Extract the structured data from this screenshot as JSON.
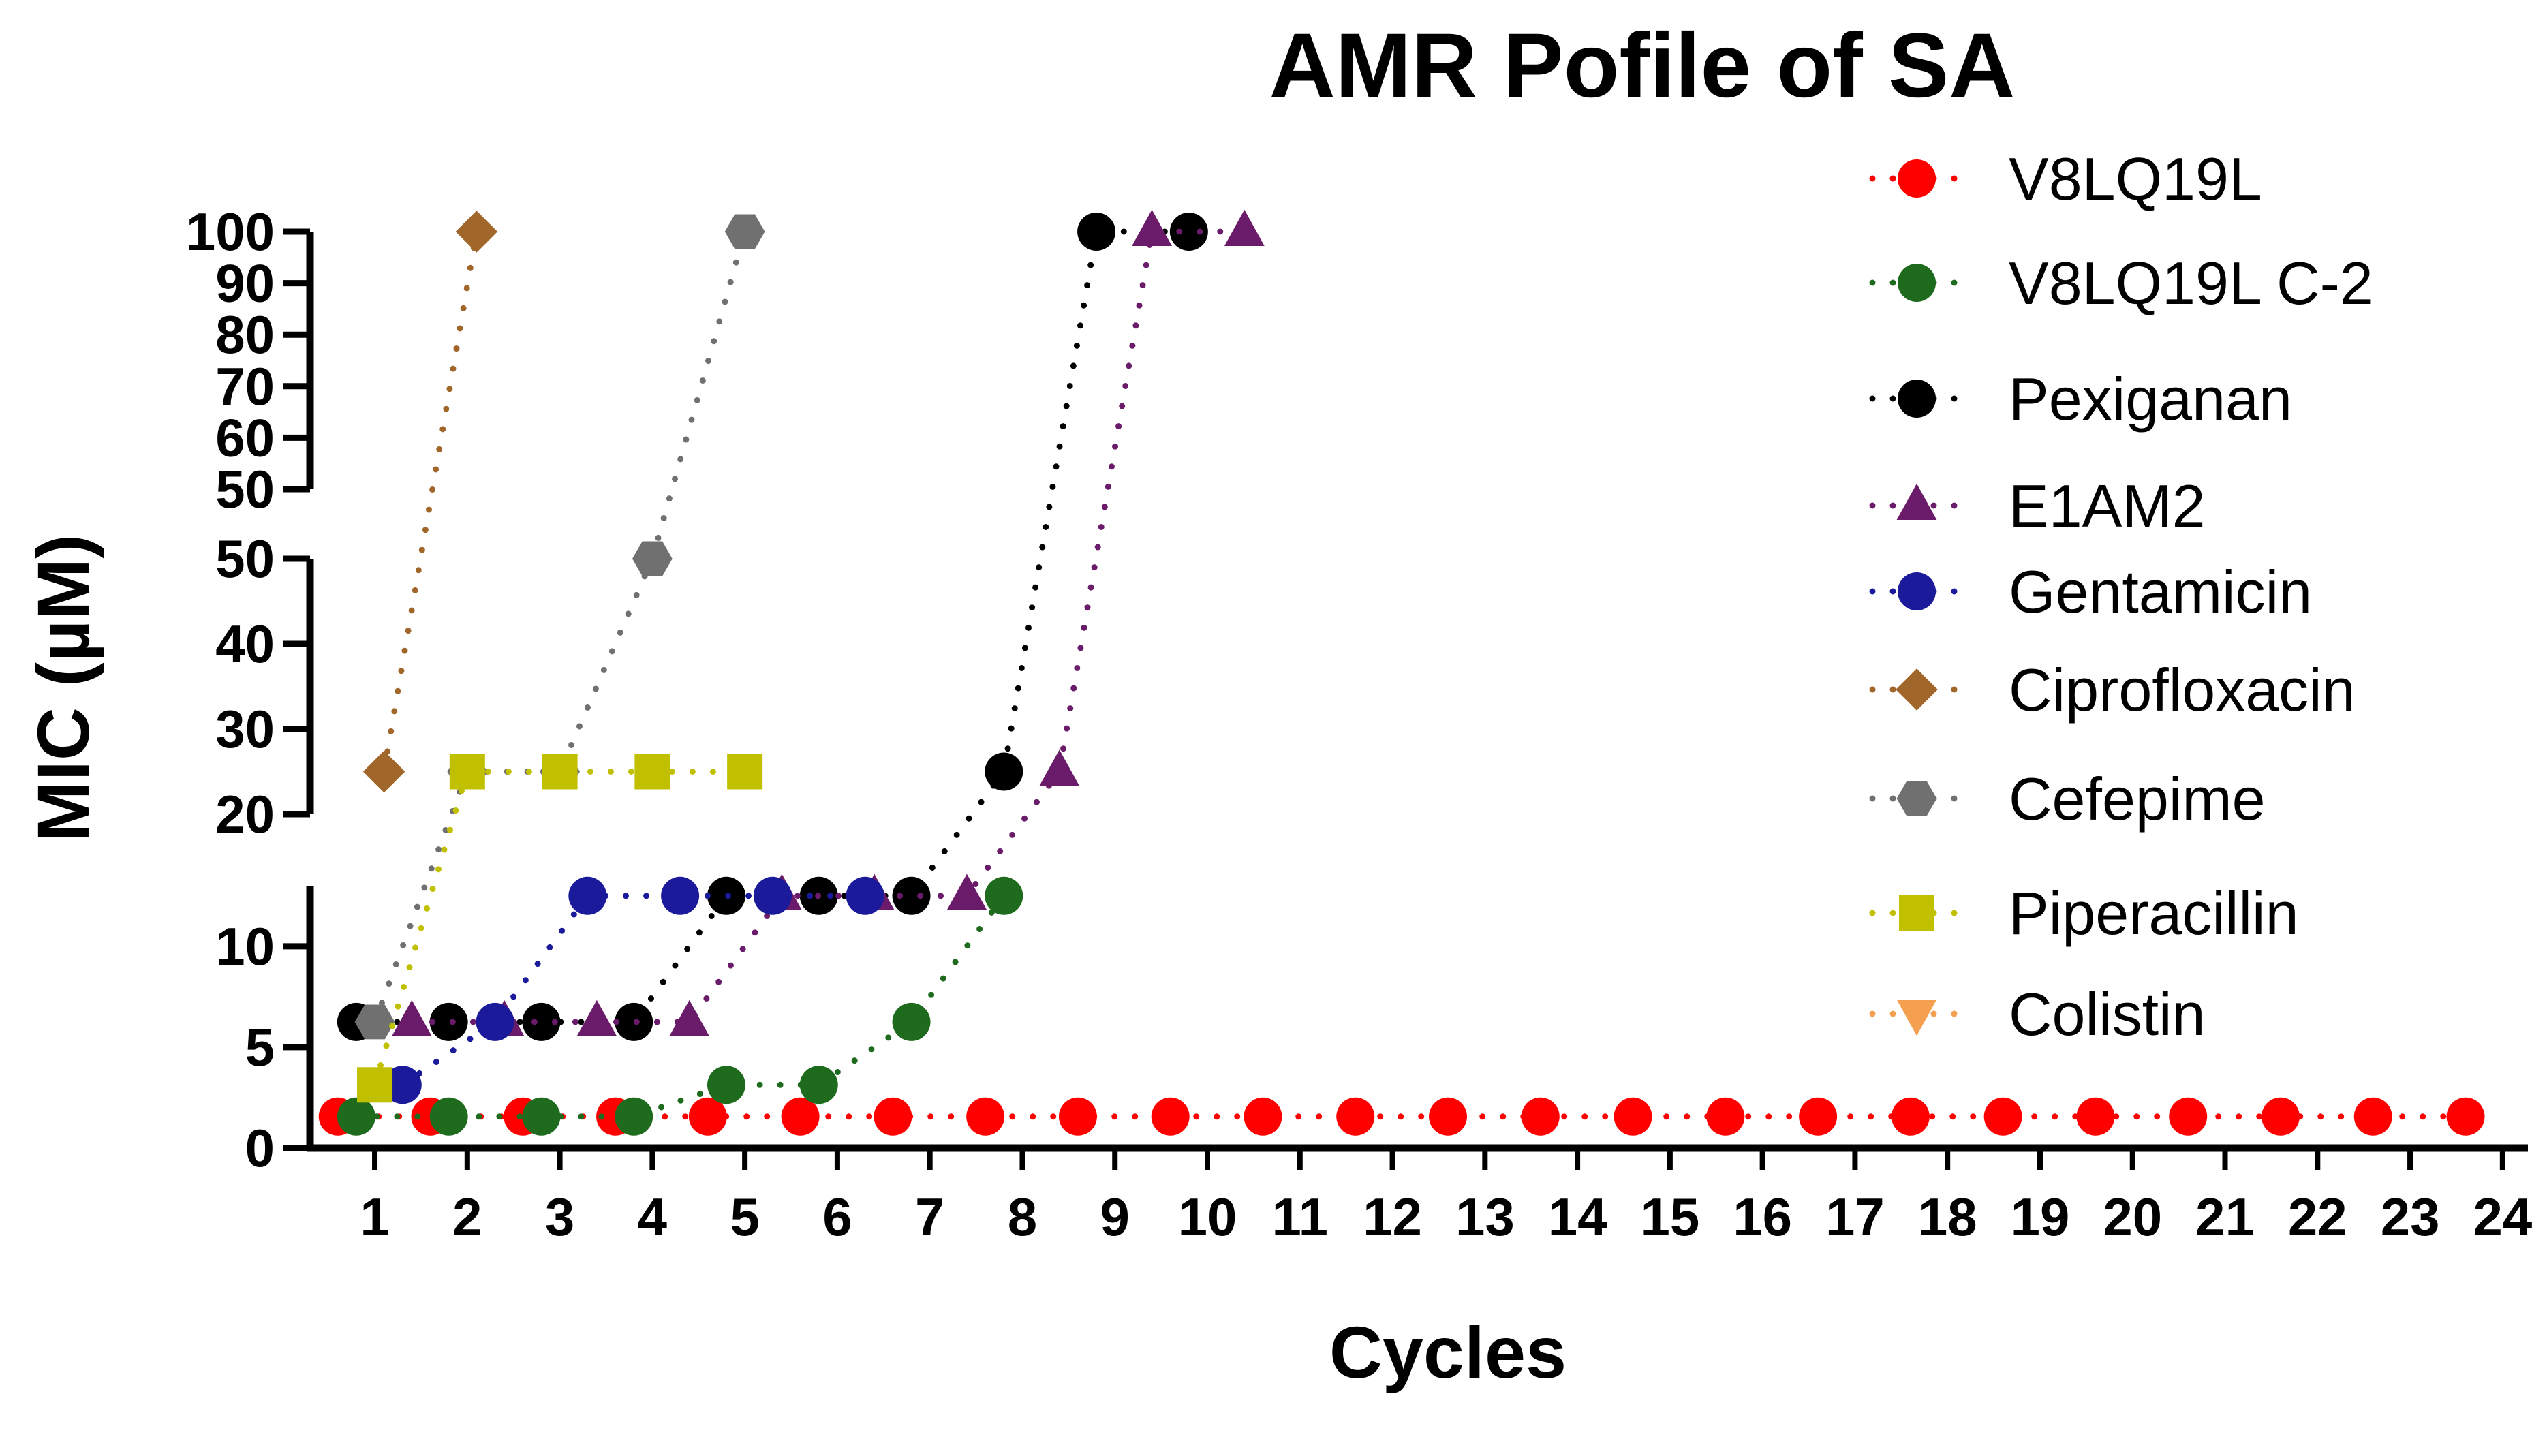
{
  "chart_data": {
    "type": "scatter",
    "title": "AMR Pofile of SA",
    "xlabel": "Cycles",
    "ylabel": "MIC (µM)",
    "xlim": [
      0.3,
      24.2
    ],
    "y_axis_segments": [
      {
        "range": [
          0,
          13
        ],
        "ticks": [
          0,
          5,
          10
        ],
        "tick_labels": [
          "0",
          "5",
          "10"
        ]
      },
      {
        "range": [
          20,
          50
        ],
        "ticks": [
          20,
          30,
          40,
          50
        ],
        "tick_labels": [
          "20",
          "30",
          "40",
          "50"
        ]
      },
      {
        "range": [
          50,
          100
        ],
        "ticks": [
          50,
          60,
          70,
          80,
          90,
          100
        ],
        "tick_labels": [
          "50",
          "60",
          "70",
          "80",
          "90",
          "100"
        ]
      }
    ],
    "x_ticks": [
      1,
      2,
      3,
      4,
      5,
      6,
      7,
      8,
      9,
      10,
      11,
      12,
      13,
      14,
      15,
      16,
      17,
      18,
      19,
      20,
      21,
      22,
      23,
      24
    ],
    "x_tick_labels": [
      "1",
      "2",
      "3",
      "4",
      "5",
      "6",
      "7",
      "8",
      "9",
      "10",
      "11",
      "12",
      "13",
      "14",
      "15",
      "16",
      "17",
      "18",
      "19",
      "20",
      "21",
      "22",
      "23",
      "24"
    ],
    "grid": false,
    "legend_position": "right",
    "line_style": "dotted",
    "series": [
      {
        "name": "V8LQ19L",
        "color": "#ff0000",
        "marker": "circle",
        "x": [
          0.6,
          1.6,
          2.6,
          3.6,
          4.6,
          5.6,
          6.6,
          7.6,
          8.6,
          9.6,
          10.6,
          11.6,
          12.6,
          13.6,
          14.6,
          15.6,
          16.6,
          17.6,
          18.6,
          19.6,
          20.6,
          21.6,
          22.6,
          23.6
        ],
        "y": [
          1.56,
          1.56,
          1.56,
          1.56,
          1.56,
          1.56,
          1.56,
          1.56,
          1.56,
          1.56,
          1.56,
          1.56,
          1.56,
          1.56,
          1.56,
          1.56,
          1.56,
          1.56,
          1.56,
          1.56,
          1.56,
          1.56,
          1.56,
          1.56
        ]
      },
      {
        "name": "V8LQ19L C-2",
        "color": "#1e6b1e",
        "marker": "circle",
        "x": [
          0.8,
          1.8,
          2.8,
          3.8,
          4.8,
          5.8,
          6.8,
          7.8
        ],
        "y": [
          1.56,
          1.56,
          1.56,
          1.56,
          3.13,
          3.13,
          6.25,
          12.5
        ]
      },
      {
        "name": "Pexiganan",
        "color": "#000000",
        "marker": "circle",
        "x": [
          0.8,
          1.8,
          2.8,
          3.8,
          4.8,
          5.8,
          6.8,
          7.8,
          8.8,
          9.8
        ],
        "y": [
          6.25,
          6.25,
          6.25,
          6.25,
          12.5,
          12.5,
          12.5,
          25,
          100,
          100
        ]
      },
      {
        "name": "E1AM2",
        "color": "#6a1b6a",
        "marker": "triangle-up",
        "x": [
          1.4,
          2.4,
          3.4,
          4.4,
          5.4,
          6.4,
          7.4,
          8.4,
          9.4,
          10.4
        ],
        "y": [
          6.25,
          6.25,
          6.25,
          6.25,
          12.5,
          12.5,
          12.5,
          25,
          100,
          100
        ]
      },
      {
        "name": "Gentamicin",
        "color": "#1a1a9a",
        "marker": "circle",
        "x": [
          1.3,
          2.3,
          3.3,
          4.3,
          5.3,
          6.3
        ],
        "y": [
          3.13,
          6.25,
          12.5,
          12.5,
          12.5,
          12.5
        ]
      },
      {
        "name": "Ciprofloxacin",
        "color": "#a0662a",
        "marker": "diamond",
        "x": [
          1.1,
          2.1
        ],
        "y": [
          25,
          100
        ]
      },
      {
        "name": "Cefepime",
        "color": "#707070",
        "marker": "hexagon",
        "x": [
          1.0,
          2.0,
          3.0,
          4.0,
          5.0
        ],
        "y": [
          6.25,
          25,
          25,
          50,
          100
        ]
      },
      {
        "name": "Piperacillin",
        "color": "#c0c000",
        "marker": "square",
        "x": [
          1.0,
          2.0,
          3.0,
          4.0,
          5.0
        ],
        "y": [
          3.13,
          25,
          25,
          25,
          25
        ]
      },
      {
        "name": "Colistin",
        "color": "#f5a050",
        "marker": "triangle-down",
        "x": [],
        "y": []
      }
    ]
  }
}
